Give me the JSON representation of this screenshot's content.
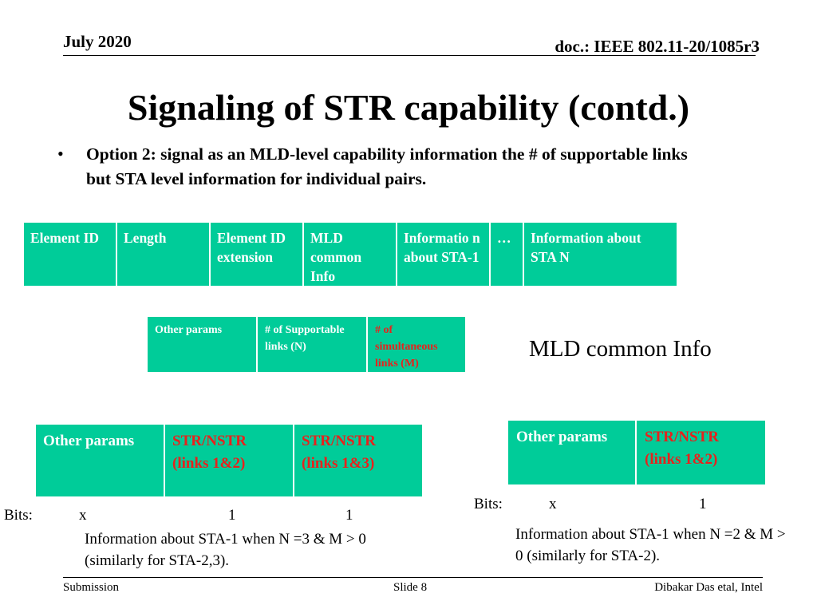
{
  "header": {
    "date": "July 2020",
    "doc": "doc.: IEEE 802.11-20/1085r3"
  },
  "title": "Signaling of STR capability (contd.)",
  "bullet": {
    "marker": "•",
    "text": "Option 2: signal as an MLD-level capability information the # of supportable links but STA level information for individual pairs."
  },
  "element_table": [
    "Element ID",
    "Length",
    "Element ID extension",
    "MLD common Info",
    "Informatio n about STA-1",
    "…",
    "Information about  STA N"
  ],
  "mld_table": {
    "cells": [
      {
        "label": "Other params",
        "highlight": false
      },
      {
        "label": "# of Supportable links (N)",
        "highlight": false
      },
      {
        "label": "# of simultaneous links (M)",
        "highlight": true
      }
    ],
    "caption": "MLD common Info"
  },
  "left_example": {
    "cells": [
      {
        "label": "Other params",
        "highlight": false
      },
      {
        "label": "STR/NSTR (links 1&2)",
        "highlight": true
      },
      {
        "label": "STR/NSTR (links 1&3)",
        "highlight": true
      }
    ],
    "bits_label": "Bits:",
    "bits": [
      "x",
      "1",
      "1"
    ],
    "note": "Information about STA-1 when N =3 & M > 0 (similarly for STA-2,3)."
  },
  "right_example": {
    "cells": [
      {
        "label": "Other params",
        "highlight": false
      },
      {
        "label": "STR/NSTR (links 1&2)",
        "highlight": true
      }
    ],
    "bits_label": "Bits:",
    "bits": [
      "x",
      "1"
    ],
    "note": "Information about STA-1 when N =2 & M > 0 (similarly for STA-2)."
  },
  "footer": {
    "left": "Submission",
    "center": "Slide 8",
    "right": "Dibakar Das etal, Intel"
  },
  "colors": {
    "teal": "#00cc99",
    "highlight_red": "#e8211c"
  }
}
